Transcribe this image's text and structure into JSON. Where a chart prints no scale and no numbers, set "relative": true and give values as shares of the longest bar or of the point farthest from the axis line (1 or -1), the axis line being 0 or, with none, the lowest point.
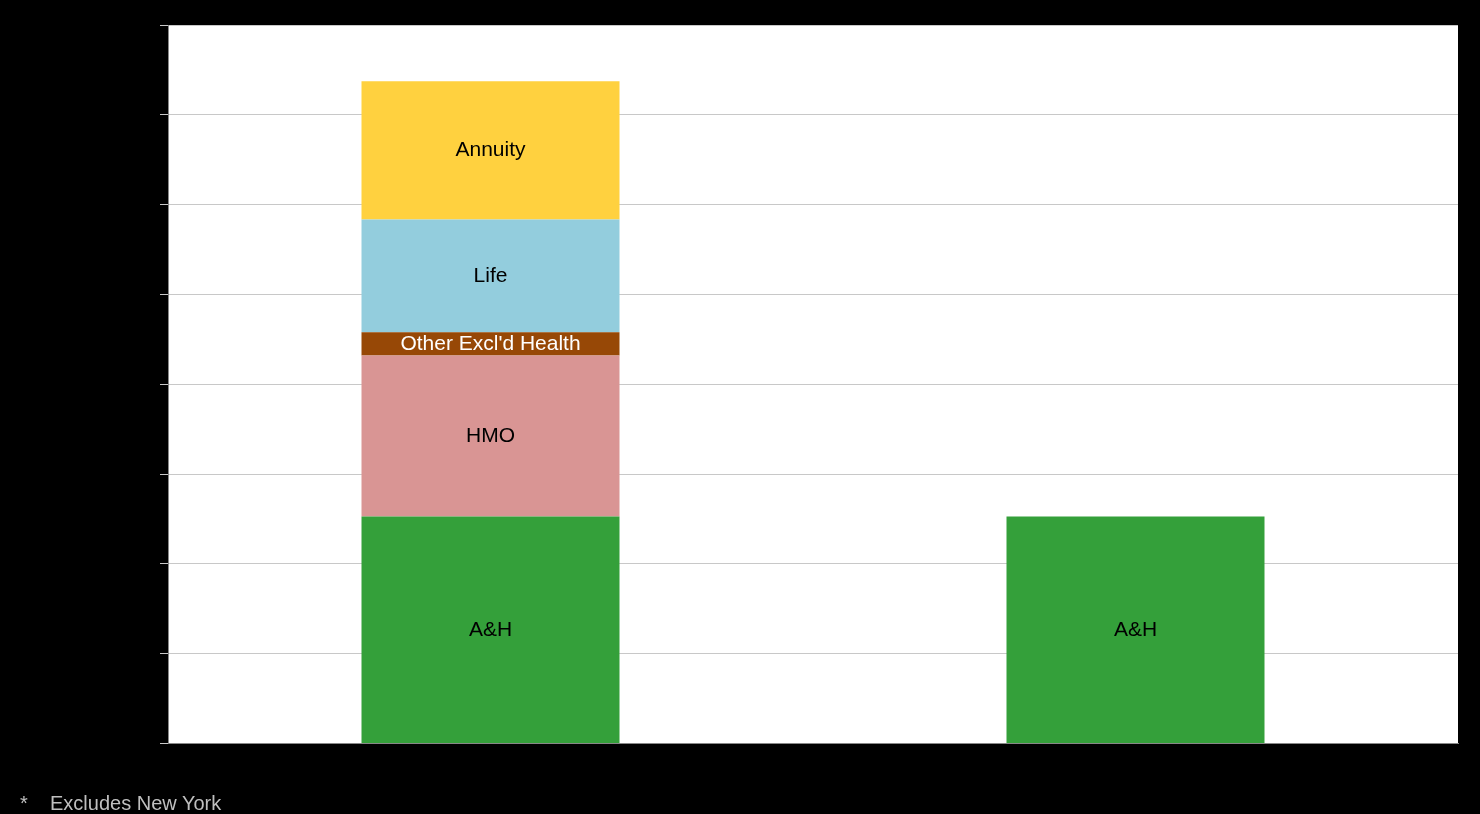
{
  "chart_data": {
    "type": "bar",
    "stacked": true,
    "relative": true,
    "grid": "y",
    "legend": false,
    "categories": [
      null,
      null
    ],
    "series": [
      {
        "name": "A&H",
        "color": "#34a03a",
        "values": [
          0.343,
          0.343
        ]
      },
      {
        "name": "HMO",
        "color": "#d99594",
        "values": [
          0.243,
          null
        ]
      },
      {
        "name": "Other Excl'd Health",
        "color": "#974806",
        "values": [
          0.035,
          null
        ]
      },
      {
        "name": "Life",
        "color": "#93cddd",
        "values": [
          0.17,
          null
        ]
      },
      {
        "name": "Annuity",
        "color": "#ffd13f",
        "values": [
          0.209,
          null
        ]
      }
    ],
    "annotations": [
      "*    Excludes New York"
    ]
  }
}
